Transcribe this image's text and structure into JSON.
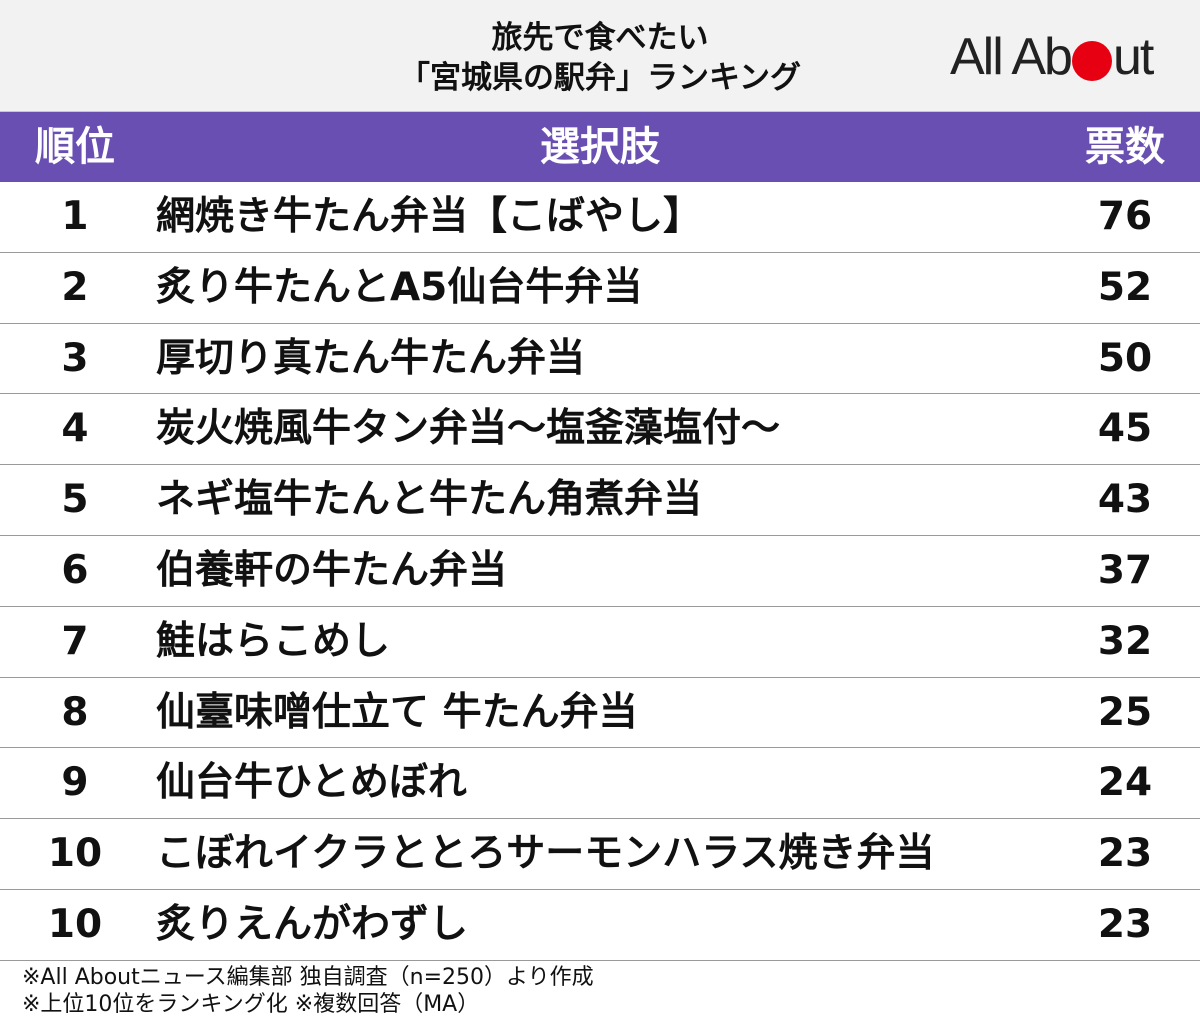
{
  "title_line1": "旅先で食べたい",
  "title_line2": "「宮城県の駅弁」ランキング",
  "logo": {
    "left": "All Ab",
    "right": "ut",
    "dot_color": "#e60012"
  },
  "header_bg": "#f2f2f2",
  "accent_color": "#6a4fb3",
  "columns": {
    "rank": "順位",
    "choice": "選択肢",
    "votes": "票数"
  },
  "chart_data": {
    "type": "table",
    "title": "旅先で食べたい「宮城県の駅弁」ランキング",
    "columns": [
      "順位",
      "選択肢",
      "票数"
    ],
    "rows": [
      {
        "rank": "1",
        "choice": "網焼き牛たん弁当【こばやし】",
        "votes": "76"
      },
      {
        "rank": "2",
        "choice": "炙り牛たんとA5仙台牛弁当",
        "votes": "52"
      },
      {
        "rank": "3",
        "choice": "厚切り真たん牛たん弁当",
        "votes": "50"
      },
      {
        "rank": "4",
        "choice": "炭火焼風牛タン弁当～塩釜藻塩付～",
        "votes": "45"
      },
      {
        "rank": "5",
        "choice": "ネギ塩牛たんと牛たん角煮弁当",
        "votes": "43"
      },
      {
        "rank": "6",
        "choice": "伯養軒の牛たん弁当",
        "votes": "37"
      },
      {
        "rank": "7",
        "choice": "鮭はらこめし",
        "votes": "32"
      },
      {
        "rank": "8",
        "choice": "仙臺味噌仕立て 牛たん弁当",
        "votes": "25"
      },
      {
        "rank": "9",
        "choice": "仙台牛ひとめぼれ",
        "votes": "24"
      },
      {
        "rank": "10",
        "choice": "こぼれイクラととろサーモンハラス焼き弁当",
        "votes": "23"
      },
      {
        "rank": "10",
        "choice": "炙りえんがわずし",
        "votes": "23"
      }
    ]
  },
  "footer": {
    "line1": "※All Aboutニュース編集部 独自調査（n=250）より作成",
    "line2": "※上位10位をランキング化 ※複数回答（MA）"
  }
}
